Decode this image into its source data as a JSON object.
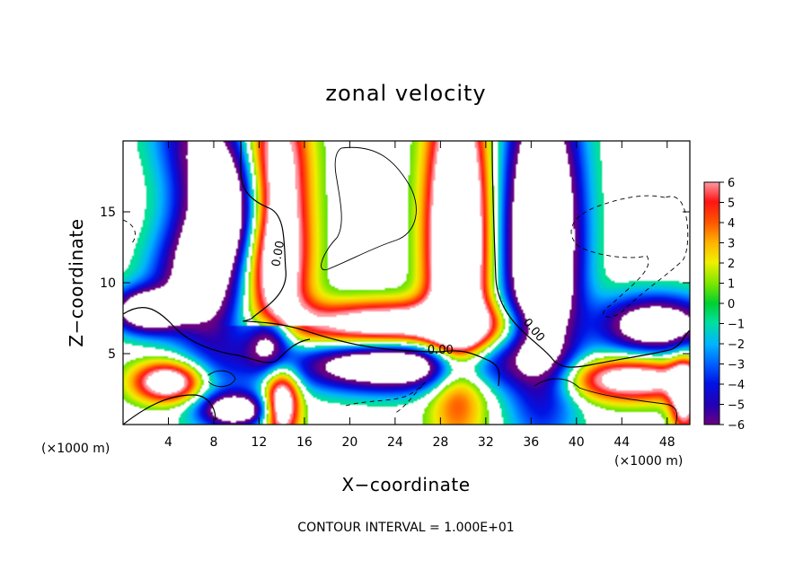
{
  "chart_data": {
    "type": "heatmap",
    "title": "zonal velocity",
    "xlabel": "X−coordinate",
    "ylabel": "Z−coordinate",
    "x_unit_left": "(×1000 m)",
    "x_unit_right": "(×1000 m)",
    "footer": "CONTOUR INTERVAL = 1.000E+01",
    "xlim": [
      0,
      50
    ],
    "ylim": [
      0,
      20
    ],
    "x_ticks": [
      4,
      8,
      12,
      16,
      20,
      24,
      28,
      32,
      36,
      40,
      44,
      48
    ],
    "y_ticks": [
      5,
      10,
      15
    ],
    "colorbar": {
      "min": -6,
      "max": 6,
      "ticks": [
        "6",
        "5",
        "4",
        "3",
        "2",
        "1",
        "0",
        "−1",
        "−2",
        "−3",
        "−4",
        "−5",
        "−6"
      ]
    },
    "contour_labels": [
      {
        "text": "0.00",
        "x": 14,
        "y": 12
      },
      {
        "text": "0.00",
        "x": 28,
        "y": 5
      },
      {
        "text": "0.00",
        "x": 36,
        "y": 6.5
      }
    ]
  }
}
